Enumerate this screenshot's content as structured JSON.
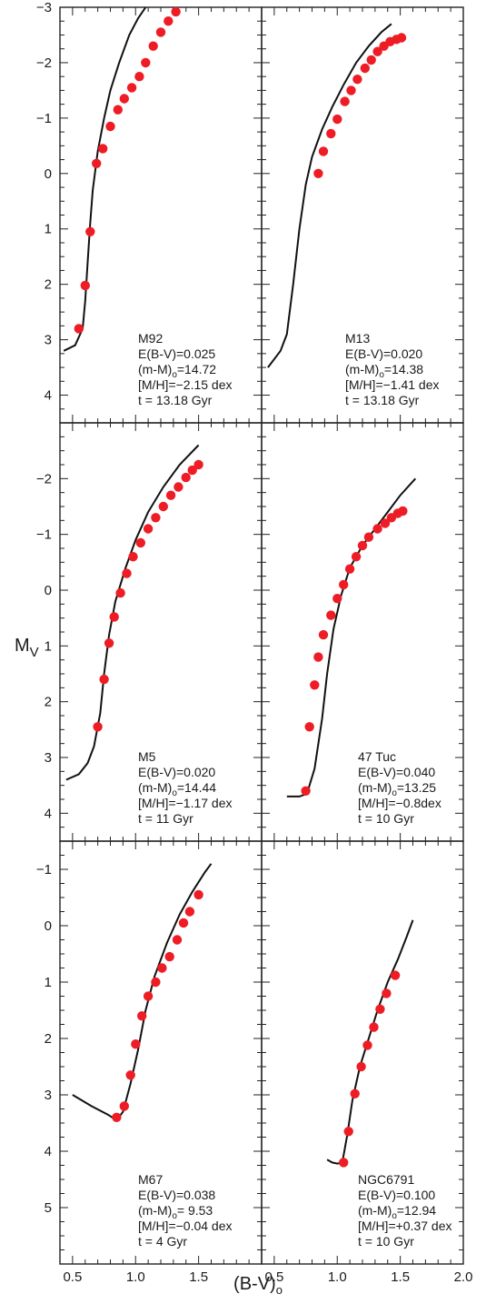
{
  "chart_data": {
    "type": "scatter",
    "xlabel": "(B-V)",
    "xlabel_subscript": "o",
    "ylabel": "M",
    "ylabel_subscript": "V",
    "x_ticks": [
      "0.5",
      "1.0",
      "1.5",
      "2.0"
    ],
    "xlim": [
      0.4,
      2.0
    ],
    "legend": "none",
    "grid": false,
    "panels": [
      {
        "id": "m92",
        "ylim": [
          4.5,
          -3
        ],
        "y_ticks": [
          "-3",
          "-2",
          "-1",
          "0",
          "1",
          "2",
          "3",
          "4"
        ],
        "annotation": [
          "M92",
          "E(B-V)=0.025",
          "(m-M)o=14.72",
          "[M/H]=-2.15 dex",
          "t = 13.18 Gyr"
        ],
        "model_line": {
          "x": [
            0.43,
            0.52,
            0.58,
            0.6,
            0.62,
            0.64,
            0.66,
            0.7,
            0.75,
            0.8,
            0.87,
            0.95,
            1.02,
            1.08
          ],
          "y": [
            3.2,
            3.1,
            2.8,
            2.3,
            1.6,
            0.9,
            0.3,
            -0.4,
            -1.0,
            -1.5,
            -2.0,
            -2.5,
            -2.8,
            -3.0
          ]
        },
        "points": {
          "x": [
            0.55,
            0.6,
            0.64,
            0.69,
            0.74,
            0.8,
            0.86,
            0.91,
            0.97,
            1.03,
            1.08,
            1.14,
            1.2,
            1.26,
            1.32
          ],
          "y": [
            2.8,
            2.02,
            1.05,
            -0.18,
            -0.45,
            -0.85,
            -1.15,
            -1.35,
            -1.55,
            -1.75,
            -2.0,
            -2.3,
            -2.55,
            -2.75,
            -2.92
          ]
        }
      },
      {
        "id": "m13",
        "ylim": [
          4.5,
          -3
        ],
        "y_ticks": [],
        "annotation": [
          "M13",
          "E(B-V)=0.020",
          "(m-M)o=14.38",
          "[M/H]=-1.41 dex",
          "t = 13.18 Gyr"
        ],
        "model_line": {
          "x": [
            0.45,
            0.55,
            0.6,
            0.65,
            0.7,
            0.75,
            0.8,
            0.88,
            0.96,
            1.05,
            1.15,
            1.25,
            1.35,
            1.43
          ],
          "y": [
            3.5,
            3.2,
            2.9,
            2.0,
            1.0,
            0.2,
            -0.3,
            -0.8,
            -1.2,
            -1.6,
            -2.0,
            -2.3,
            -2.55,
            -2.7
          ]
        },
        "points": {
          "x": [
            0.85,
            0.89,
            0.95,
            1.0,
            1.06,
            1.11,
            1.16,
            1.22,
            1.27,
            1.32,
            1.37,
            1.42,
            1.47,
            1.51
          ],
          "y": [
            0.0,
            -0.4,
            -0.72,
            -0.98,
            -1.3,
            -1.5,
            -1.7,
            -1.9,
            -2.05,
            -2.2,
            -2.3,
            -2.38,
            -2.42,
            -2.45
          ]
        }
      },
      {
        "id": "m5",
        "ylim": [
          4.5,
          -3
        ],
        "y_ticks": [
          "-2",
          "-1",
          "0",
          "1",
          "2",
          "3",
          "4"
        ],
        "annotation": [
          "M5",
          "E(B-V)=0.020",
          "(m-M)o=14.44",
          "[M/H]=-1.17 dex",
          "t = 11 Gyr"
        ],
        "model_line": {
          "x": [
            0.45,
            0.55,
            0.62,
            0.67,
            0.72,
            0.75,
            0.79,
            0.84,
            0.92,
            1.0,
            1.1,
            1.22,
            1.35,
            1.5
          ],
          "y": [
            3.4,
            3.3,
            3.1,
            2.8,
            2.2,
            1.5,
            0.8,
            0.2,
            -0.4,
            -0.9,
            -1.4,
            -1.85,
            -2.25,
            -2.6
          ]
        },
        "points": {
          "x": [
            0.7,
            0.75,
            0.79,
            0.83,
            0.88,
            0.93,
            0.98,
            1.04,
            1.1,
            1.16,
            1.22,
            1.28,
            1.34,
            1.4,
            1.45,
            1.5
          ],
          "y": [
            2.45,
            1.6,
            0.95,
            0.48,
            0.05,
            -0.3,
            -0.6,
            -0.85,
            -1.1,
            -1.3,
            -1.5,
            -1.7,
            -1.85,
            -2.02,
            -2.15,
            -2.25
          ]
        }
      },
      {
        "id": "47tuc",
        "ylim": [
          4.5,
          -3
        ],
        "y_ticks": [],
        "annotation": [
          "47 Tuc",
          "E(B-V)=0.040",
          "(m-M)o=13.25",
          "[M/H]=-0.8dex",
          "t = 10 Gyr"
        ],
        "model_line": {
          "x": [
            0.6,
            0.7,
            0.76,
            0.82,
            0.88,
            0.92,
            0.97,
            1.03,
            1.1,
            1.2,
            1.3,
            1.4,
            1.5,
            1.62
          ],
          "y": [
            3.7,
            3.7,
            3.65,
            3.2,
            2.3,
            1.5,
            0.7,
            0.1,
            -0.4,
            -0.8,
            -1.1,
            -1.4,
            -1.7,
            -2.0
          ]
        },
        "points": {
          "x": [
            0.75,
            0.78,
            0.82,
            0.85,
            0.89,
            0.95,
            1.0,
            1.05,
            1.1,
            1.15,
            1.2,
            1.25,
            1.32,
            1.38,
            1.43,
            1.48,
            1.52
          ],
          "y": [
            3.6,
            2.45,
            1.7,
            1.2,
            0.8,
            0.45,
            0.15,
            -0.1,
            -0.38,
            -0.6,
            -0.8,
            -0.95,
            -1.1,
            -1.2,
            -1.3,
            -1.38,
            -1.42
          ]
        }
      },
      {
        "id": "m67",
        "ylim": [
          6.0,
          -1.5
        ],
        "y_ticks": [
          "-1",
          "0",
          "1",
          "2",
          "3",
          "4",
          "5"
        ],
        "annotation": [
          "M67",
          "E(B-V)=0.038",
          "(m-M)o= 9.53",
          "[M/H]=-0.04 dex",
          "t = 4 Gyr"
        ],
        "model_line": {
          "x": [
            0.5,
            0.65,
            0.78,
            0.85,
            0.9,
            0.96,
            1.02,
            1.08,
            1.15,
            1.25,
            1.35,
            1.45,
            1.55,
            1.6
          ],
          "y": [
            3.0,
            3.2,
            3.35,
            3.45,
            3.3,
            2.8,
            2.2,
            1.5,
            0.9,
            0.3,
            -0.2,
            -0.6,
            -0.95,
            -1.1
          ]
        },
        "points": {
          "x": [
            0.85,
            0.91,
            0.96,
            1.0,
            1.05,
            1.1,
            1.16,
            1.21,
            1.27,
            1.33,
            1.38,
            1.43,
            1.5
          ],
          "y": [
            3.4,
            3.2,
            2.65,
            2.1,
            1.6,
            1.25,
            1.0,
            0.75,
            0.55,
            0.25,
            -0.05,
            -0.25,
            -0.55
          ]
        }
      },
      {
        "id": "ngc6791",
        "ylim": [
          6.0,
          -1.5
        ],
        "y_ticks": [],
        "annotation": [
          "NGC6791",
          "E(B-V)=0.100",
          "(m-M)o=12.94",
          "[M/H]=+0.37 dex",
          "t = 10 Gyr"
        ],
        "model_line": {
          "x": [
            0.92,
            0.96,
            1.0,
            1.04,
            1.08,
            1.12,
            1.18,
            1.25,
            1.32,
            1.4,
            1.48,
            1.55,
            1.6
          ],
          "y": [
            4.15,
            4.2,
            4.22,
            4.2,
            3.7,
            3.1,
            2.5,
            2.0,
            1.5,
            1.0,
            0.6,
            0.2,
            -0.1
          ]
        },
        "points": {
          "x": [
            1.05,
            1.09,
            1.14,
            1.19,
            1.24,
            1.29,
            1.34,
            1.39,
            1.46
          ],
          "y": [
            4.2,
            3.65,
            2.98,
            2.5,
            2.12,
            1.8,
            1.48,
            1.2,
            0.88
          ]
        }
      }
    ]
  }
}
